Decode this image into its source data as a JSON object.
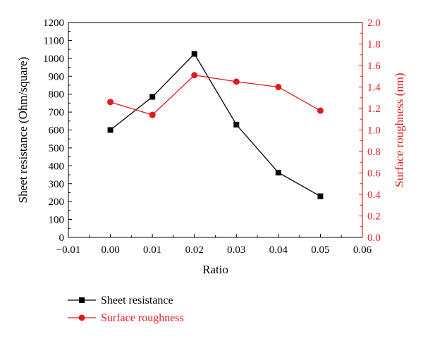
{
  "chart_data": {
    "type": "line",
    "title": "",
    "x": [
      0.0,
      0.01,
      0.02,
      0.03,
      0.04,
      0.05
    ],
    "xlabel": "Ratio",
    "xlim": [
      -0.01,
      0.06
    ],
    "xticks": [
      "−0.01",
      "0.00",
      "0.01",
      "0.02",
      "0.03",
      "0.04",
      "0.05",
      "0.06"
    ],
    "ylabel_left": "Sheet resistance (Ohm/square)",
    "ylim_left": [
      0,
      1200
    ],
    "yticks_left": [
      "0",
      "100",
      "200",
      "300",
      "400",
      "500",
      "600",
      "700",
      "800",
      "900",
      "1000",
      "1100",
      "1200"
    ],
    "ylabel_right": "Surface roughness (nm)",
    "ylim_right": [
      0.0,
      2.0
    ],
    "yticks_right": [
      "0.0",
      "0.2",
      "0.4",
      "0.6",
      "0.8",
      "1.0",
      "1.2",
      "1.4",
      "1.6",
      "1.8",
      "2.0"
    ],
    "grid": false,
    "legend_position": "bottom-left",
    "series": [
      {
        "name": "Sheet resistance",
        "axis": "left",
        "marker": "square",
        "color": "#000000",
        "values": [
          600,
          785,
          1025,
          630,
          362,
          230
        ]
      },
      {
        "name": "Surface roughness",
        "axis": "right",
        "marker": "circle",
        "color": "#e31a1c",
        "values": [
          1.26,
          1.14,
          1.51,
          1.45,
          1.4,
          1.18
        ]
      }
    ]
  }
}
